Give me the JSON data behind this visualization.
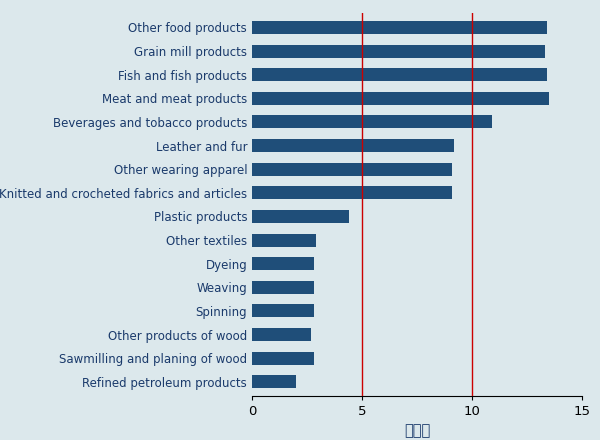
{
  "categories": [
    "Refined petroleum products",
    "Sawmilling and planing of wood",
    "Other products of wood",
    "Spinning",
    "Weaving",
    "Dyeing",
    "Other textiles",
    "Plastic products",
    "Knitted and crocheted fabrics and articles",
    "Other wearing apparel",
    "Leather and fur",
    "Beverages and tobacco products",
    "Meat and meat products",
    "Fish and fish products",
    "Grain mill products",
    "Other food products"
  ],
  "values": [
    2.0,
    2.8,
    2.7,
    2.8,
    2.8,
    2.8,
    2.9,
    4.4,
    9.1,
    9.1,
    9.2,
    10.9,
    13.5,
    13.4,
    13.3,
    13.4
  ],
  "bar_color": "#1f4e79",
  "vline_color": "#cc0000",
  "vlines": [
    5.0,
    10.0
  ],
  "xlabel": "関税率",
  "xlim": [
    0,
    15
  ],
  "xticks": [
    0,
    5,
    10,
    15
  ],
  "background_color": "#dce8ec",
  "bar_height": 0.55,
  "text_color": "#1a3a6b",
  "label_fontsize": 8.5,
  "xlabel_fontsize": 10.5
}
